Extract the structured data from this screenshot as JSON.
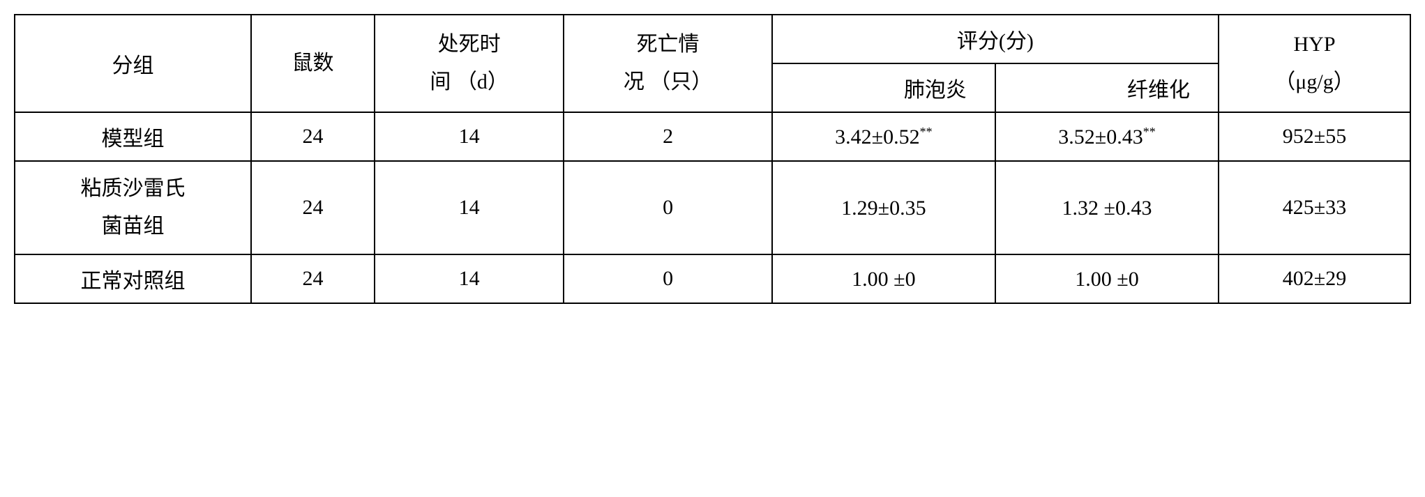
{
  "headers": {
    "group": "分组",
    "rat_count": "鼠数",
    "kill_time_line1": "处死时",
    "kill_time_line2": "间 （d）",
    "death_line1": "死亡情",
    "death_line2": "况 （只）",
    "score": "评分(分)",
    "alveolitis": "肺泡炎",
    "fibrosis": "纤维化",
    "hyp": "HYP",
    "hyp_unit": "（μg/g）"
  },
  "rows": [
    {
      "group": "模型组",
      "rat_count": "24",
      "kill_time": "14",
      "death": "2",
      "alveolitis": "3.42±0.52",
      "alveolitis_sup": "**",
      "fibrosis": "3.52±0.43",
      "fibrosis_sup": "**",
      "hyp": "952±55"
    },
    {
      "group_line1": "粘质沙雷氏",
      "group_line2": "菌苗组",
      "rat_count": "24",
      "kill_time": "14",
      "death": "0",
      "alveolitis": "1.29±0.35",
      "alveolitis_sup": "",
      "fibrosis": "1.32 ±0.43",
      "fibrosis_sup": "",
      "hyp": "425±33"
    },
    {
      "group": "正常对照组",
      "rat_count": "24",
      "kill_time": "14",
      "death": "0",
      "alveolitis": "1.00 ±0",
      "alveolitis_sup": "",
      "fibrosis": "1.00 ±0",
      "fibrosis_sup": "",
      "hyp": "402±29"
    }
  ]
}
